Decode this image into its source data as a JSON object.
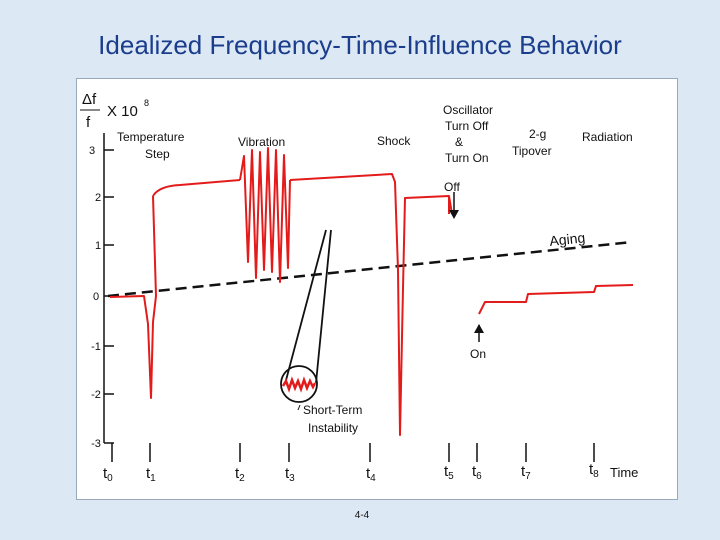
{
  "title": "Idealized Frequency-Time-Influence Behavior",
  "page_number": "4-4",
  "y_axis": {
    "label_numerator": "Δf",
    "label_denominator": "f",
    "label_scale": "X 10",
    "label_exponent": "8",
    "ticks": [
      "3",
      "2",
      "1",
      "0",
      "-1",
      "-2",
      "-3"
    ]
  },
  "time_axis": {
    "label": "Time",
    "ticks": [
      {
        "base": "t",
        "sub": "0"
      },
      {
        "base": "t",
        "sub": "1"
      },
      {
        "base": "t",
        "sub": "2"
      },
      {
        "base": "t",
        "sub": "3"
      },
      {
        "base": "t",
        "sub": "4"
      },
      {
        "base": "t",
        "sub": "5"
      },
      {
        "base": "t",
        "sub": "6"
      },
      {
        "base": "t",
        "sub": "7"
      },
      {
        "base": "t",
        "sub": "8"
      }
    ]
  },
  "annotations": {
    "temperature_line1": "Temperature",
    "temperature_line2": "Step",
    "vibration": "Vibration",
    "shock": "Shock",
    "oscillator_line1": "Oscillator",
    "oscillator_line2": "Turn Off",
    "oscillator_line3": "&",
    "oscillator_line4": "Turn On",
    "two_g": "2-g",
    "tipover": "Tipover",
    "radiation": "Radiation",
    "off": "Off",
    "on": "On",
    "aging": "Aging",
    "short_term_line1": "Short-Term",
    "short_term_line2": "Instability"
  },
  "colors": {
    "title": "#1a3d8c",
    "signal": "#e31b1b",
    "axis": "#111111",
    "background": "#dde8f5"
  }
}
